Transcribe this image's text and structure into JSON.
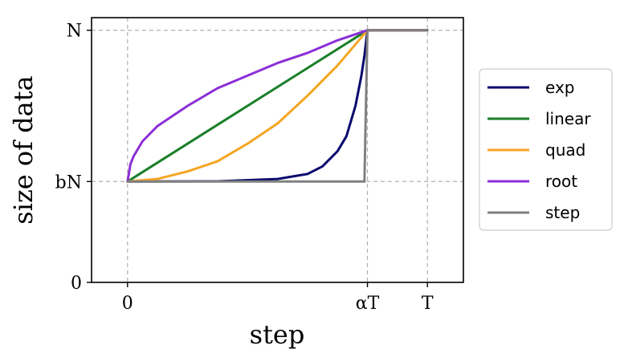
{
  "chart_data": {
    "type": "line",
    "xlabel": "step",
    "ylabel": "size of data",
    "xlim": [
      -0.12,
      1.12
    ],
    "ylim": [
      0,
      1.05
    ],
    "x_ticks": [
      {
        "value": 0,
        "label": "0"
      },
      {
        "value": 0.8,
        "label": "αT"
      },
      {
        "value": 1.0,
        "label": "T"
      }
    ],
    "y_ticks": [
      {
        "value": 0,
        "label": "0"
      },
      {
        "value": 0.4,
        "label": "bN"
      },
      {
        "value": 1.0,
        "label": "N"
      }
    ],
    "grid": "dashed, at tick positions",
    "legend_position": "right, outside plot",
    "series": [
      {
        "name": "exp",
        "color": "#08086e",
        "points": [
          [
            0,
            0.4
          ],
          [
            0.3,
            0.401
          ],
          [
            0.5,
            0.41
          ],
          [
            0.6,
            0.43
          ],
          [
            0.65,
            0.46
          ],
          [
            0.7,
            0.52
          ],
          [
            0.73,
            0.58
          ],
          [
            0.76,
            0.7
          ],
          [
            0.78,
            0.82
          ],
          [
            0.79,
            0.9
          ],
          [
            0.8,
            1.0
          ],
          [
            1.0,
            1.0
          ]
        ]
      },
      {
        "name": "linear",
        "color": "#1a7f2a",
        "points": [
          [
            0,
            0.4
          ],
          [
            0.8,
            1.0
          ],
          [
            1.0,
            1.0
          ]
        ]
      },
      {
        "name": "quad",
        "color": "#f5a623",
        "points": [
          [
            0,
            0.4
          ],
          [
            0.1,
            0.41
          ],
          [
            0.2,
            0.44
          ],
          [
            0.3,
            0.48
          ],
          [
            0.4,
            0.55
          ],
          [
            0.5,
            0.63
          ],
          [
            0.6,
            0.74
          ],
          [
            0.7,
            0.86
          ],
          [
            0.8,
            1.0
          ],
          [
            1.0,
            1.0
          ]
        ]
      },
      {
        "name": "root",
        "color": "#8b2fd6",
        "points": [
          [
            0,
            0.4
          ],
          [
            0.01,
            0.47
          ],
          [
            0.02,
            0.5
          ],
          [
            0.05,
            0.56
          ],
          [
            0.1,
            0.62
          ],
          [
            0.2,
            0.7
          ],
          [
            0.3,
            0.77
          ],
          [
            0.4,
            0.82
          ],
          [
            0.5,
            0.87
          ],
          [
            0.6,
            0.91
          ],
          [
            0.7,
            0.96
          ],
          [
            0.8,
            1.0
          ],
          [
            1.0,
            1.0
          ]
        ]
      },
      {
        "name": "step",
        "color": "#808080",
        "points": [
          [
            0,
            0.4
          ],
          [
            0.79,
            0.4
          ],
          [
            0.8,
            1.0
          ],
          [
            1.0,
            1.0
          ]
        ]
      }
    ]
  }
}
